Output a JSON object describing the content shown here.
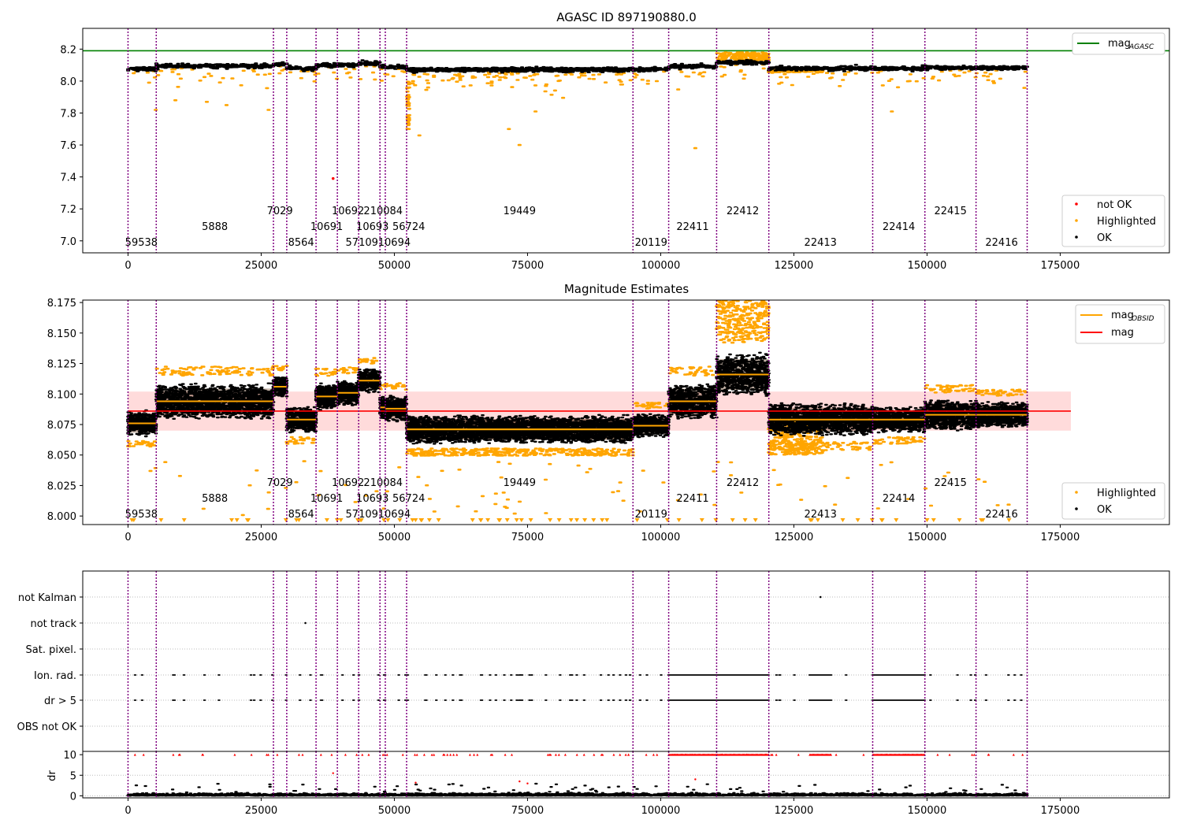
{
  "figure_title": "AGASC ID 897190880.0",
  "colors": {
    "ok": "#000000",
    "highlighted": "#ffa500",
    "not_ok": "#ff0000",
    "agasc_line": "#008000",
    "mag_line": "#ff0000",
    "mag_band": "#ffcccc",
    "obsid_line": "#ffa500",
    "boundary": "#800080"
  },
  "chart_data": [
    {
      "id": "top",
      "type": "scatter",
      "title": "AGASC ID 897190880.0",
      "xlim": [
        -8500,
        195500
      ],
      "ylim": [
        6.925,
        8.33
      ],
      "xticks": [
        0,
        25000,
        50000,
        75000,
        100000,
        125000,
        150000,
        175000
      ],
      "yticks": [
        7.0,
        7.2,
        7.4,
        7.6,
        7.8,
        8.0,
        8.2
      ],
      "ytick_labels": [
        "7.0",
        "7.2",
        "7.4",
        "7.6",
        "7.8",
        "8.0",
        "8.2"
      ],
      "mag_agasc": 8.19,
      "legend_upper": [
        {
          "label": "mag",
          "sub": "AGASC",
          "kind": "line",
          "color": "#008000"
        }
      ],
      "legend_lower": [
        {
          "label": "not OK",
          "kind": "dot",
          "color": "#ff0000"
        },
        {
          "label": "Highlighted",
          "kind": "dot",
          "color": "#ffa500"
        },
        {
          "label": "OK",
          "kind": "dot",
          "color": "#000000"
        }
      ],
      "outliers_not_ok": [
        {
          "x": 38500,
          "y": 7.39
        }
      ],
      "outliers_highlighted": [
        {
          "x": 52500,
          "y": 7.9
        },
        {
          "x": 52600,
          "y": 7.75
        },
        {
          "x": 52700,
          "y": 7.7
        },
        {
          "x": 54700,
          "y": 7.66
        },
        {
          "x": 71500,
          "y": 7.7
        },
        {
          "x": 73500,
          "y": 7.6
        },
        {
          "x": 76500,
          "y": 7.81
        },
        {
          "x": 106500,
          "y": 7.58
        },
        {
          "x": 18500,
          "y": 7.85
        },
        {
          "x": 8900,
          "y": 7.88
        },
        {
          "x": 14800,
          "y": 7.87
        },
        {
          "x": 26400,
          "y": 7.82
        },
        {
          "x": 5200,
          "y": 7.82
        },
        {
          "x": 143400,
          "y": 7.81
        }
      ]
    },
    {
      "id": "middle",
      "type": "scatter",
      "title": "Magnitude Estimates",
      "xlim": [
        -8500,
        195500
      ],
      "ylim": [
        7.993,
        8.177
      ],
      "xticks": [
        0,
        25000,
        50000,
        75000,
        100000,
        125000,
        150000,
        175000
      ],
      "yticks": [
        8.0,
        8.025,
        8.05,
        8.075,
        8.1,
        8.125,
        8.15,
        8.175
      ],
      "ytick_labels": [
        "8.000",
        "8.025",
        "8.050",
        "8.075",
        "8.100",
        "8.125",
        "8.150",
        "8.175"
      ],
      "mag": 8.086,
      "mag_band": [
        8.07,
        8.102
      ],
      "legend_upper": [
        {
          "label": "mag",
          "sub": "OBSID",
          "kind": "line",
          "color": "#ffa500"
        },
        {
          "label": "mag",
          "sub": "",
          "kind": "line",
          "color": "#ff0000"
        }
      ],
      "legend_lower": [
        {
          "label": "Highlighted",
          "kind": "dot",
          "color": "#ffa500"
        },
        {
          "label": "OK",
          "kind": "dot",
          "color": "#000000"
        }
      ]
    },
    {
      "id": "flags",
      "type": "scatter",
      "rows": [
        "not Kalman",
        "not track",
        "Sat. pixel.",
        "Ion. rad.",
        "dr > 5",
        "OBS not OK"
      ],
      "xlim": [
        -8500,
        195500
      ],
      "single_points": [
        {
          "row": "not Kalman",
          "x": 130000
        },
        {
          "row": "not track",
          "x": 33300
        }
      ]
    },
    {
      "id": "dr",
      "type": "scatter",
      "ylabel": "dr",
      "xlim": [
        -8500,
        195500
      ],
      "ylim": [
        -0.5,
        10.8
      ],
      "yticks": [
        0,
        5,
        10
      ],
      "ytick_labels": [
        "0",
        "5",
        "10"
      ],
      "xticks": [
        0,
        25000,
        50000,
        75000,
        100000,
        125000,
        150000,
        175000
      ]
    }
  ],
  "x_tick_labels": [
    "0",
    "25000",
    "50000",
    "75000",
    "100000",
    "125000",
    "150000",
    "175000"
  ],
  "observations": [
    {
      "obsid": "59538",
      "start": 0,
      "end": 5300,
      "mag": 8.076,
      "spread": 0.011,
      "level": 0,
      "top": 8.075,
      "hi": "low"
    },
    {
      "obsid": "5888",
      "start": 5300,
      "end": 27300,
      "mag": 8.094,
      "spread": 0.015,
      "level": 1,
      "top": 8.095,
      "hi": "high"
    },
    {
      "obsid": "7029",
      "start": 27300,
      "end": 29800,
      "mag": 8.106,
      "spread": 0.009,
      "level": 2,
      "top": 8.108,
      "hi": "high"
    },
    {
      "obsid": "8564",
      "start": 29800,
      "end": 35300,
      "mag": 8.079,
      "spread": 0.011,
      "level": 0,
      "top": 8.08,
      "hi": "low"
    },
    {
      "obsid": "10691",
      "start": 35300,
      "end": 39300,
      "mag": 8.098,
      "spread": 0.012,
      "level": 1,
      "top": 8.097,
      "hi": "high"
    },
    {
      "obsid": "10692",
      "start": 39300,
      "end": 43300,
      "mag": 8.101,
      "spread": 0.011,
      "level": 2,
      "top": 8.1,
      "hi": "high"
    },
    {
      "obsid": "57109",
      "start": 43300,
      "end": 47300,
      "mag": 8.111,
      "spread": 0.01,
      "level": 0,
      "top": 8.115,
      "hi": "high"
    },
    {
      "obsid": "10693",
      "start": 47300,
      "end": 48300,
      "mag": 8.089,
      "spread": 0.01,
      "level": 1,
      "top": 8.1,
      "hi": "high"
    },
    {
      "obsid": "210084",
      "start": 48300,
      "end": 52300,
      "mag": 8.088,
      "spread": 0.011,
      "level": 2,
      "top": 8.094,
      "hi": "high"
    },
    {
      "obsid": "10694",
      "start": 48000,
      "end": 48300,
      "mag": 8.09,
      "spread": 0.01,
      "level": 0,
      "top": 8.095,
      "hi": "high"
    },
    {
      "obsid": "56724",
      "start": 52300,
      "end": 94800,
      "mag": 8.071,
      "spread": 0.012,
      "level": 1,
      "top": 8.074,
      "hi": "low"
    },
    {
      "obsid": "19449",
      "start": 52300,
      "end": 94800,
      "mag": 8.071,
      "spread": 0.012,
      "level": 2,
      "top": 8.074,
      "hi": "low"
    },
    {
      "obsid": "20119",
      "start": 94800,
      "end": 101500,
      "mag": 8.074,
      "spread": 0.01,
      "level": 0,
      "top": 8.075,
      "hi": "high"
    },
    {
      "obsid": "22411",
      "start": 101500,
      "end": 110500,
      "mag": 8.094,
      "spread": 0.015,
      "level": 1,
      "top": 8.085,
      "hi": "high"
    },
    {
      "obsid": "22412",
      "start": 110500,
      "end": 120300,
      "mag": 8.116,
      "spread": 0.018,
      "level": 2,
      "top": 8.135,
      "hi": "sat"
    },
    {
      "obsid": "22413",
      "start": 120300,
      "end": 139800,
      "mag": 8.079,
      "spread": 0.014,
      "level": 0,
      "top": 8.065,
      "hi": "lowband"
    },
    {
      "obsid": "22414",
      "start": 139800,
      "end": 149600,
      "mag": 8.079,
      "spread": 0.011,
      "level": 1,
      "top": 8.085,
      "hi": "low"
    },
    {
      "obsid": "22415",
      "start": 149600,
      "end": 159200,
      "mag": 8.083,
      "spread": 0.013,
      "level": 2,
      "top": 8.092,
      "hi": "high"
    },
    {
      "obsid": "22416",
      "start": 159200,
      "end": 168800,
      "mag": 8.083,
      "spread": 0.011,
      "level": 0,
      "top": 8.088,
      "hi": "high"
    }
  ],
  "obsid_labels": [
    {
      "text": "59538",
      "x": 2500,
      "level": 0
    },
    {
      "text": "5888",
      "x": 16300,
      "level": 1
    },
    {
      "text": "7029",
      "x": 28500,
      "level": 2
    },
    {
      "text": "8564",
      "x": 32500,
      "level": 0
    },
    {
      "text": "10691",
      "x": 37300,
      "level": 1
    },
    {
      "text": "10692",
      "x": 41300,
      "level": 2
    },
    {
      "text": "57109",
      "x": 43900,
      "level": 0
    },
    {
      "text": "10693",
      "x": 45900,
      "level": 1
    },
    {
      "text": "210084",
      "x": 47900,
      "level": 2
    },
    {
      "text": "10694",
      "x": 50000,
      "level": 0
    },
    {
      "text": "56724",
      "x": 52700,
      "level": 1
    },
    {
      "text": "19449",
      "x": 73500,
      "level": 2
    },
    {
      "text": "20119",
      "x": 98200,
      "level": 0
    },
    {
      "text": "22411",
      "x": 106000,
      "level": 1
    },
    {
      "text": "22412",
      "x": 115400,
      "level": 2
    },
    {
      "text": "22413",
      "x": 130000,
      "level": 0
    },
    {
      "text": "22414",
      "x": 144700,
      "level": 1
    },
    {
      "text": "22415",
      "x": 154400,
      "level": 2
    },
    {
      "text": "22416",
      "x": 164000,
      "level": 0
    }
  ],
  "boundaries": [
    0,
    5300,
    27300,
    29800,
    35300,
    39300,
    43300,
    47300,
    48300,
    52300,
    94800,
    101500,
    110500,
    120300,
    139800,
    149600,
    159200,
    168800
  ],
  "ion_rad_ranges_dense": [
    [
      101500,
      120300
    ],
    [
      128000,
      132000
    ],
    [
      139800,
      149600
    ]
  ]
}
